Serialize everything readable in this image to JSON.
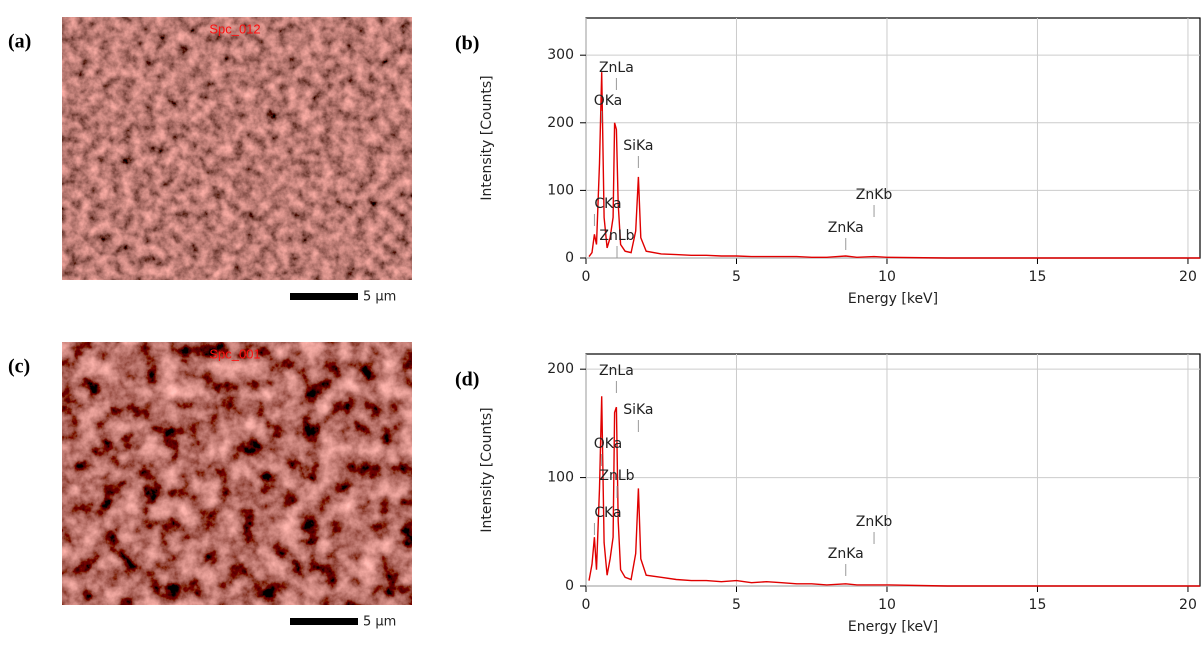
{
  "images": [
    {
      "label": "(a)",
      "name": "Spc_012",
      "scale_bar": "5 µm"
    },
    {
      "label": "(c)",
      "name": "Spc_001",
      "scale_bar": "5 µm"
    }
  ],
  "chart_data": [
    {
      "type": "line",
      "panel_label": "(b)",
      "xlabel": "Energy [keV]",
      "ylabel": "Intensity [Counts]",
      "x": [
        0.1,
        0.2,
        0.28,
        0.35,
        0.45,
        0.52,
        0.6,
        0.7,
        0.8,
        0.9,
        0.95,
        1.01,
        1.07,
        1.15,
        1.3,
        1.5,
        1.65,
        1.74,
        1.82,
        2.0,
        2.5,
        3,
        3.5,
        4,
        4.5,
        5,
        5.5,
        6,
        6.5,
        7,
        7.5,
        8,
        8.63,
        9,
        9.57,
        10,
        12,
        14,
        16,
        18,
        20.4
      ],
      "values": [
        2,
        8,
        35,
        20,
        140,
        275,
        60,
        15,
        30,
        60,
        200,
        190,
        80,
        20,
        10,
        8,
        40,
        120,
        30,
        10,
        6,
        5,
        4,
        4,
        3,
        3,
        2,
        2,
        2,
        2,
        1,
        1,
        3,
        1,
        2,
        1,
        0,
        0,
        0,
        0,
        0
      ],
      "color": "#e00000",
      "annotations": [
        {
          "text": "ZnLa",
          "x": 1.01
        },
        {
          "text": "OKa",
          "x": 0.52
        },
        {
          "text": "SiKa",
          "x": 1.74
        },
        {
          "text": "CKa",
          "x": 0.28
        },
        {
          "text": "ZnLb",
          "x": 1.03
        },
        {
          "text": "ZnKa",
          "x": 8.63
        },
        {
          "text": "ZnKb",
          "x": 9.57
        }
      ],
      "xlim": [
        0,
        20.4
      ],
      "ylim": [
        0,
        355
      ],
      "xticks": [
        0,
        5,
        10,
        15,
        20
      ],
      "yticks": [
        0,
        100,
        200,
        300
      ],
      "grid": true
    },
    {
      "type": "line",
      "panel_label": "(d)",
      "xlabel": "Energy [keV]",
      "ylabel": "Intensity [Counts]",
      "x": [
        0.1,
        0.2,
        0.28,
        0.35,
        0.45,
        0.52,
        0.6,
        0.7,
        0.8,
        0.9,
        0.95,
        1.01,
        1.07,
        1.15,
        1.3,
        1.5,
        1.65,
        1.74,
        1.82,
        2.0,
        2.5,
        3,
        3.5,
        4,
        4.5,
        5,
        5.5,
        6,
        6.5,
        7,
        7.5,
        8,
        8.63,
        9,
        9.57,
        10,
        12,
        14,
        16,
        18,
        20.4
      ],
      "values": [
        5,
        20,
        45,
        15,
        90,
        175,
        40,
        10,
        25,
        45,
        160,
        165,
        60,
        15,
        8,
        6,
        30,
        90,
        25,
        10,
        8,
        6,
        5,
        5,
        4,
        5,
        3,
        4,
        3,
        2,
        2,
        1,
        2,
        1,
        1,
        1,
        0,
        0,
        0,
        0,
        0
      ],
      "color": "#e00000",
      "annotations": [
        {
          "text": "ZnLa",
          "x": 1.01
        },
        {
          "text": "OKa",
          "x": 0.52
        },
        {
          "text": "SiKa",
          "x": 1.74
        },
        {
          "text": "CKa",
          "x": 0.28
        },
        {
          "text": "ZnLb",
          "x": 1.03
        },
        {
          "text": "ZnKa",
          "x": 8.63
        },
        {
          "text": "ZnKb",
          "x": 9.57
        }
      ],
      "xlim": [
        0,
        20.4
      ],
      "ylim": [
        0,
        214
      ],
      "xticks": [
        0,
        5,
        10,
        15,
        20
      ],
      "yticks": [
        0,
        100,
        200
      ],
      "grid": true
    }
  ]
}
